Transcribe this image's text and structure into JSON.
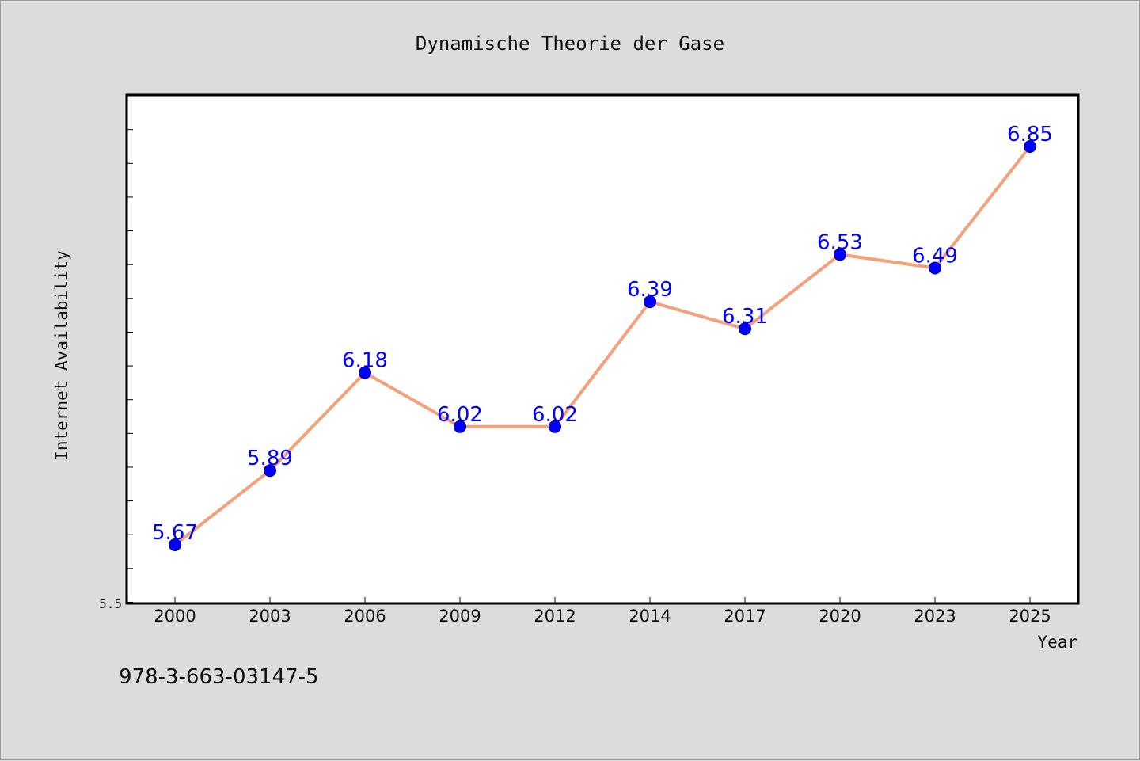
{
  "chart_data": {
    "type": "line",
    "title": "Dynamische Theorie der Gase",
    "xlabel": "Year",
    "ylabel": "Internet Availability",
    "categories": [
      "2000",
      "2003",
      "2006",
      "2009",
      "2012",
      "2014",
      "2017",
      "2020",
      "2023",
      "2025"
    ],
    "series": [
      {
        "values": [
          5.67,
          5.89,
          6.18,
          6.02,
          6.02,
          6.39,
          6.31,
          6.53,
          6.49,
          6.85
        ],
        "labels": [
          "5.67",
          "5.89",
          "6.18",
          "6.02",
          "6.02",
          "6.39",
          "6.31",
          "6.53",
          "6.49",
          "6.85"
        ]
      }
    ],
    "ylim": [
      5.5,
      7.0
    ],
    "ytick_labels": [
      "5.5"
    ],
    "grid": false,
    "colors": {
      "line": "#f4a07a",
      "marker": "#0000ff",
      "label": "#0000ff",
      "plot_bg": "#ffffff"
    }
  },
  "footer": {
    "isbn": "978-3-663-03147-5"
  }
}
